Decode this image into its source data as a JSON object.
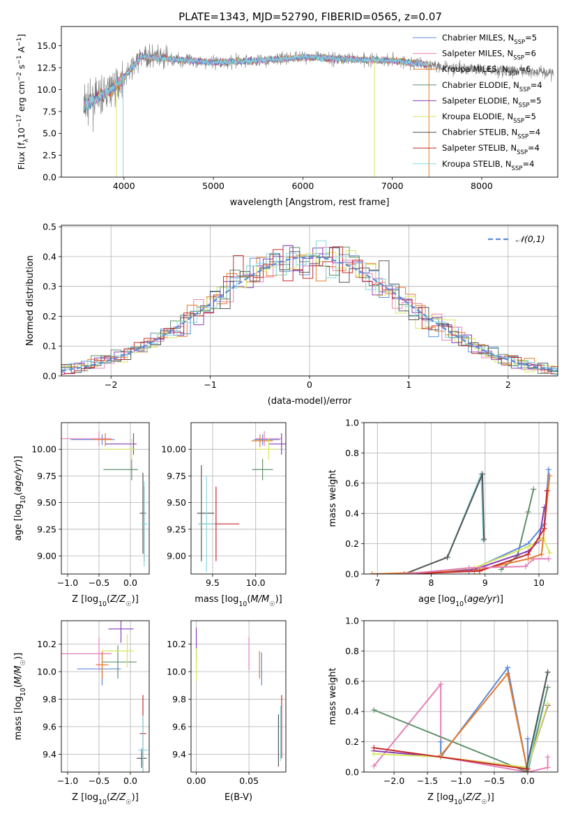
{
  "title": "PLATE=1343, MJD=52790, FIBERID=0565, z=0.07",
  "colors": {
    "chabrier_miles": "#5b8bd9",
    "salpeter_miles": "#e57fb9",
    "kroupa_miles": "#e77a28",
    "chabrier_elodie": "#5e8f6a",
    "salpeter_elodie": "#8a3fb5",
    "kroupa_elodie": "#d9e65a",
    "chabrier_stelib": "#555555",
    "salpeter_stelib": "#c62a2a",
    "kroupa_stelib": "#83d8e0",
    "data": "#808080",
    "normal": "#5b8bd9"
  },
  "chart_data": [
    {
      "id": "spectrum",
      "type": "line",
      "xlabel": "wavelength [Angstrom, rest frame]",
      "ylabel": "Flux [f_λ 10^-17 erg cm^-2 s^-1 A^-1]",
      "xlim": [
        3300,
        8850
      ],
      "ylim": [
        0,
        17.2
      ],
      "xticks": [
        4000,
        5000,
        6000,
        7000,
        8000
      ],
      "yticks": [
        "0.0",
        "2.5",
        "5.0",
        "7.5",
        "10.0",
        "12.5",
        "15.0"
      ],
      "legend_position": "right",
      "legend": [
        {
          "key": "chabrier_miles",
          "label": "Chabrier MILES, N",
          "sub": "SSP",
          "tail": "=5"
        },
        {
          "key": "salpeter_miles",
          "label": "Salpeter MILES, N",
          "sub": "SSP",
          "tail": "=6"
        },
        {
          "key": "kroupa_miles",
          "label": "Kroupa MILES, N",
          "sub": "SSP",
          "tail": "=6"
        },
        {
          "key": "chabrier_elodie",
          "label": "Chabrier ELODIE, N",
          "sub": "SSP",
          "tail": "=4"
        },
        {
          "key": "salpeter_elodie",
          "label": "Salpeter ELODIE, N",
          "sub": "SSP",
          "tail": "=5"
        },
        {
          "key": "kroupa_elodie",
          "label": "Kroupa ELODIE, N",
          "sub": "SSP",
          "tail": "=5"
        },
        {
          "key": "chabrier_stelib",
          "label": "Chabrier STELIB, N",
          "sub": "SSP",
          "tail": "=4"
        },
        {
          "key": "salpeter_stelib",
          "label": "Salpeter STELIB, N",
          "sub": "SSP",
          "tail": "=4"
        },
        {
          "key": "kroupa_stelib",
          "label": "Kroupa STELIB, N",
          "sub": "SSP",
          "tail": "=4"
        }
      ],
      "continuum": [
        [
          3550,
          8.2
        ],
        [
          3700,
          9.0
        ],
        [
          3850,
          10.0
        ],
        [
          4000,
          11.4
        ],
        [
          4200,
          13.8
        ],
        [
          4500,
          13.5
        ],
        [
          5000,
          13.1
        ],
        [
          5500,
          13.3
        ],
        [
          6000,
          13.7
        ],
        [
          6500,
          13.5
        ],
        [
          7000,
          13.3
        ],
        [
          7500,
          12.7
        ],
        [
          8000,
          12.2
        ],
        [
          8500,
          12.1
        ],
        [
          8800,
          11.9
        ]
      ]
    },
    {
      "id": "residuals",
      "type": "histogram",
      "xlabel": "(data-model)/error",
      "ylabel": "Normed distribution",
      "xlim": [
        -2.5,
        2.5
      ],
      "ylim": [
        0,
        0.505
      ],
      "xticks": [
        "−2",
        "−1",
        "0",
        "1",
        "2"
      ],
      "yticks": [
        "0.0",
        "0.1",
        "0.2",
        "0.3",
        "0.4",
        "0.5"
      ],
      "legend_position": "top-right",
      "legend_label": "𝒩(0,1)",
      "bin_width": 0.1
    },
    {
      "id": "age_vs_Z",
      "type": "scatter",
      "xlabel": "Z [log10(Z/Z☉)]",
      "ylabel": "age [log10(age/yr)]",
      "xlim": [
        -1.1,
        0.3
      ],
      "ylim": [
        8.83,
        10.25
      ],
      "xticks": [
        "−1.0",
        "−0.5",
        "0.0"
      ],
      "yticks": [
        "9.00",
        "9.25",
        "9.50",
        "9.75",
        "10.00"
      ],
      "points": [
        {
          "key": "chabrier_miles",
          "x": -0.45,
          "xerr": [
            0.5,
            0.2
          ],
          "y": 10.09,
          "yerr": 0.05
        },
        {
          "key": "salpeter_miles",
          "x": -0.5,
          "xerr": [
            0.6,
            0.2
          ],
          "y": 10.1,
          "yerr": 0.07
        },
        {
          "key": "kroupa_miles",
          "x": -0.4,
          "xerr": [
            0.2,
            0.1
          ],
          "y": 10.09,
          "yerr": 0.06
        },
        {
          "key": "chabrier_elodie",
          "x": 0.02,
          "xerr": [
            0.45,
            0.1
          ],
          "y": 9.81,
          "yerr": 0.1
        },
        {
          "key": "salpeter_elodie",
          "x": 0.05,
          "xerr": [
            0.45,
            0.05
          ],
          "y": 10.05,
          "yerr": 0.1
        },
        {
          "key": "kroupa_elodie",
          "x": 0.02,
          "xerr": [
            0.45,
            0.05
          ],
          "y": 10.0,
          "yerr": 0.1
        },
        {
          "key": "chabrier_stelib",
          "x": 0.2,
          "xerr": [
            0.05,
            0.05
          ],
          "y": 9.4,
          "yerr": 0.38
        },
        {
          "key": "salpeter_stelib",
          "x": 0.22,
          "xerr": [
            0.03,
            0.03
          ],
          "y": 9.3,
          "yerr": 0.35
        },
        {
          "key": "kroupa_stelib",
          "x": 0.22,
          "xerr": [
            0.05,
            0.05
          ],
          "y": 9.3,
          "yerr": 0.4
        }
      ]
    },
    {
      "id": "age_vs_mass",
      "type": "scatter",
      "xlabel": "mass [log10(M/M☉)]",
      "ylabel": "",
      "xlim": [
        9.25,
        10.35
      ],
      "ylim": [
        8.83,
        10.25
      ],
      "xticks": [
        "9.5",
        "10.0"
      ],
      "yticks": [
        "9.00",
        "9.25",
        "9.50",
        "9.75",
        "10.00"
      ],
      "points": [
        {
          "key": "chabrier_miles",
          "x": 10.08,
          "xerr": [
            0.1,
            0.2
          ],
          "y": 10.09,
          "yerr": 0.05
        },
        {
          "key": "salpeter_miles",
          "x": 10.1,
          "xerr": [
            0.1,
            0.2
          ],
          "y": 10.1,
          "yerr": 0.07
        },
        {
          "key": "kroupa_miles",
          "x": 10.05,
          "xerr": [
            0.1,
            0.15
          ],
          "y": 10.08,
          "yerr": 0.06
        },
        {
          "key": "chabrier_elodie",
          "x": 10.08,
          "xerr": [
            0.12,
            0.12
          ],
          "y": 9.81,
          "yerr": 0.1
        },
        {
          "key": "salpeter_elodie",
          "x": 10.3,
          "xerr": [
            0.15,
            0.05
          ],
          "y": 10.05,
          "yerr": 0.1
        },
        {
          "key": "kroupa_elodie",
          "x": 10.15,
          "xerr": [
            0.15,
            0.1
          ],
          "y": 10.0,
          "yerr": 0.1
        },
        {
          "key": "chabrier_stelib",
          "x": 9.37,
          "xerr": [
            0.05,
            0.15
          ],
          "y": 9.4,
          "yerr": 0.45
        },
        {
          "key": "salpeter_stelib",
          "x": 9.54,
          "xerr": [
            0.2,
            0.27
          ],
          "y": 9.3,
          "yerr": 0.35
        },
        {
          "key": "kroupa_stelib",
          "x": 9.43,
          "xerr": [
            0.1,
            0.1
          ],
          "y": 9.3,
          "yerr": 0.45
        }
      ]
    },
    {
      "id": "weight_vs_age",
      "type": "line",
      "xlabel": "age [log10(age/yr)]",
      "ylabel": "mass weight",
      "xlim": [
        6.75,
        10.35
      ],
      "ylim": [
        0,
        1
      ],
      "xticks": [
        "7",
        "8",
        "9",
        "10"
      ],
      "yticks": [
        "0.0",
        "0.2",
        "0.4",
        "0.6",
        "0.8",
        "1.0"
      ],
      "series": [
        {
          "key": "kroupa_stelib",
          "x": [
            7.5,
            8.3,
            8.93,
            8.97
          ],
          "y": [
            0.0,
            0.11,
            0.66,
            0.22
          ]
        },
        {
          "key": "chabrier_stelib",
          "x": [
            7.5,
            8.3,
            8.95,
            8.98
          ],
          "y": [
            0.0,
            0.11,
            0.66,
            0.23
          ]
        },
        {
          "key": "chabrier_elodie",
          "x": [
            9.3,
            9.6,
            9.8,
            9.9
          ],
          "y": [
            0.03,
            0.12,
            0.41,
            0.56
          ]
        },
        {
          "key": "chabrier_miles",
          "x": [
            8.7,
            9.8,
            10.1,
            10.18
          ],
          "y": [
            0.02,
            0.2,
            0.33,
            0.69
          ]
        },
        {
          "key": "salpeter_elodie",
          "x": [
            7.5,
            8.8,
            9.8,
            10.0,
            10.1
          ],
          "y": [
            0.0,
            0.03,
            0.15,
            0.22,
            0.44
          ]
        },
        {
          "key": "kroupa_elodie",
          "x": [
            7.5,
            8.8,
            9.8,
            10.08,
            10.2
          ],
          "y": [
            0.0,
            0.04,
            0.18,
            0.24,
            0.14
          ]
        },
        {
          "key": "kroupa_miles",
          "x": [
            6.9,
            8.8,
            9.8,
            10.05,
            10.2
          ],
          "y": [
            0.0,
            0.02,
            0.1,
            0.13,
            0.65
          ]
        },
        {
          "key": "salpeter_stelib",
          "x": [
            7.5,
            8.9,
            9.8,
            10.1,
            10.15
          ],
          "y": [
            0.0,
            0.02,
            0.13,
            0.3,
            0.55
          ]
        },
        {
          "key": "salpeter_miles",
          "x": [
            7.5,
            8.7,
            9.75,
            9.9,
            10.18
          ],
          "y": [
            0.0,
            0.04,
            0.05,
            0.1,
            0.1
          ]
        }
      ]
    },
    {
      "id": "mass_vs_Z",
      "type": "scatter",
      "xlabel": "Z [log10(Z/Z☉)]",
      "ylabel": "mass [log10(M/M☉)]",
      "xlim": [
        -1.1,
        0.3
      ],
      "ylim": [
        9.27,
        10.37
      ],
      "xticks": [
        "−1.0",
        "−0.5",
        "0.0"
      ],
      "yticks": [
        "9.4",
        "9.6",
        "9.8",
        "10.0",
        "10.2"
      ],
      "points": [
        {
          "key": "chabrier_miles",
          "x": -0.45,
          "xerr": [
            0.4,
            0.3
          ],
          "y": 10.02,
          "yerr": 0.12
        },
        {
          "key": "salpeter_miles",
          "x": -0.5,
          "xerr": [
            0.6,
            0.2
          ],
          "y": 10.13,
          "yerr": 0.12
        },
        {
          "key": "kroupa_miles",
          "x": -0.45,
          "xerr": [
            0.1,
            0.1
          ],
          "y": 10.05,
          "yerr": 0.1
        },
        {
          "key": "chabrier_elodie",
          "x": -0.2,
          "xerr": [
            0.25,
            0.3
          ],
          "y": 10.07,
          "yerr": 0.12
        },
        {
          "key": "salpeter_elodie",
          "x": -0.15,
          "xerr": [
            0.2,
            0.2
          ],
          "y": 10.31,
          "yerr": 0.1
        },
        {
          "key": "kroupa_elodie",
          "x": -0.05,
          "xerr": [
            0.4,
            0.1
          ],
          "y": 10.15,
          "yerr": 0.12
        },
        {
          "key": "chabrier_stelib",
          "x": 0.18,
          "xerr": [
            0.08,
            0.08
          ],
          "y": 9.37,
          "yerr": 0.07
        },
        {
          "key": "salpeter_stelib",
          "x": 0.2,
          "xerr": [
            0.05,
            0.05
          ],
          "y": 9.55,
          "yerr": 0.28
        },
        {
          "key": "kroupa_stelib",
          "x": 0.2,
          "xerr": [
            0.08,
            0.08
          ],
          "y": 9.43,
          "yerr": 0.25
        }
      ]
    },
    {
      "id": "mass_vs_ebv",
      "type": "scatter",
      "xlabel": "E(B-V)",
      "ylabel": "",
      "xlim": [
        -0.005,
        0.085
      ],
      "ylim": [
        9.27,
        10.37
      ],
      "xticks": [
        "0.00",
        "0.05"
      ],
      "yticks": [
        "9.4",
        "9.6",
        "9.8",
        "10.0",
        "10.2"
      ],
      "points": [
        {
          "key": "chabrier_miles",
          "x": 0.062,
          "xerr": [
            0,
            0
          ],
          "y": 10.02,
          "yerr": 0.12
        },
        {
          "key": "salpeter_miles",
          "x": 0.05,
          "xerr": [
            0,
            0
          ],
          "y": 10.13,
          "yerr": 0.12
        },
        {
          "key": "kroupa_miles",
          "x": 0.06,
          "xerr": [
            0,
            0
          ],
          "y": 10.05,
          "yerr": 0.1
        },
        {
          "key": "salpeter_elodie",
          "x": 0.0,
          "xerr": [
            0,
            0
          ],
          "y": 10.2,
          "yerr": 0.12
        },
        {
          "key": "kroupa_elodie",
          "x": 0.0,
          "xerr": [
            0,
            0
          ],
          "y": 10.05,
          "yerr": 0.12
        },
        {
          "key": "chabrier_stelib",
          "x": 0.078,
          "xerr": [
            0,
            0
          ],
          "y": 9.5,
          "yerr": 0.19
        },
        {
          "key": "salpeter_stelib",
          "x": 0.081,
          "xerr": [
            0,
            0
          ],
          "y": 9.6,
          "yerr": 0.23
        },
        {
          "key": "kroupa_stelib",
          "x": 0.08,
          "xerr": [
            0,
            0
          ],
          "y": 9.55,
          "yerr": 0.2
        }
      ]
    },
    {
      "id": "weight_vs_Z",
      "type": "line",
      "xlabel": "Z [log10(Z/Z☉)]",
      "ylabel": "mass weight",
      "xlim": [
        -2.45,
        0.45
      ],
      "ylim": [
        0,
        1
      ],
      "xticks": [
        "−2.0",
        "−1.5",
        "−1.0",
        "−0.5",
        "0.0"
      ],
      "yticks": [
        "0.0",
        "0.2",
        "0.4",
        "0.6",
        "0.8",
        "1.0"
      ],
      "series": [
        {
          "key": "salpeter_miles",
          "x": [
            -2.3,
            -1.3,
            -1.3,
            0.0,
            0.3,
            0.3
          ],
          "y": [
            0.04,
            0.58,
            0.1,
            0.0,
            0.03,
            0.1
          ]
        },
        {
          "key": "chabrier_elodie",
          "x": [
            -2.3,
            0.0,
            0.3
          ],
          "y": [
            0.41,
            0.0,
            0.56
          ]
        },
        {
          "key": "chabrier_miles",
          "x": [
            -1.3,
            -1.3,
            -0.3,
            0.0,
            0.0
          ],
          "y": [
            0.2,
            0.1,
            0.69,
            0.0,
            0.22
          ]
        },
        {
          "key": "kroupa_miles",
          "x": [
            -1.3,
            -0.3,
            0.0
          ],
          "y": [
            0.11,
            0.65,
            0.0
          ]
        },
        {
          "key": "salpeter_elodie",
          "x": [
            -2.3,
            -1.3,
            0.0,
            0.3
          ],
          "y": [
            0.14,
            0.1,
            0.03,
            0.44
          ]
        },
        {
          "key": "kroupa_elodie",
          "x": [
            -2.3,
            -1.3,
            0.0,
            0.3
          ],
          "y": [
            0.12,
            0.1,
            0.03,
            0.45
          ]
        },
        {
          "key": "kroupa_stelib",
          "x": [
            0.0,
            0.3
          ],
          "y": [
            0.02,
            0.66
          ]
        },
        {
          "key": "chabrier_stelib",
          "x": [
            -0.02,
            0.3
          ],
          "y": [
            0.02,
            0.66
          ]
        },
        {
          "key": "salpeter_stelib",
          "x": [
            -2.3,
            0.0
          ],
          "y": [
            0.16,
            0.02
          ]
        }
      ]
    }
  ]
}
